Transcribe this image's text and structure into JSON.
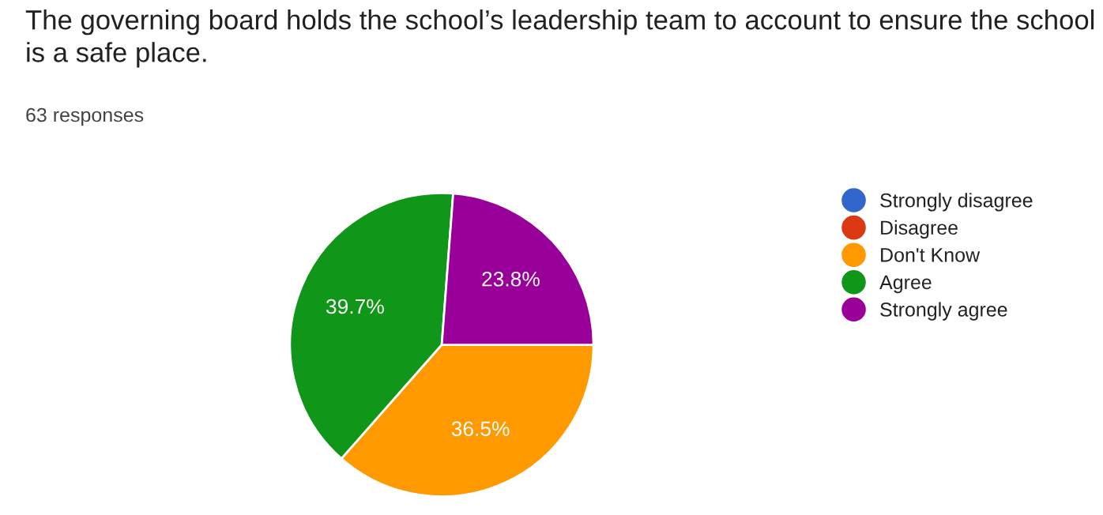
{
  "chart_data": {
    "type": "pie",
    "title": "The governing board holds the school’s leadership team to account to ensure the school is a safe place.",
    "subtitle": "63 responses",
    "categories": [
      "Strongly disagree",
      "Disagree",
      "Don't Know",
      "Agree",
      "Strongly agree"
    ],
    "values": [
      0,
      0,
      36.5,
      39.7,
      23.8
    ],
    "colors": [
      "#3366cc",
      "#dc3912",
      "#ff9900",
      "#109618",
      "#990099"
    ],
    "value_labels": [
      null,
      null,
      "36.5%",
      "39.7%",
      "23.8%"
    ],
    "legend": "right"
  }
}
